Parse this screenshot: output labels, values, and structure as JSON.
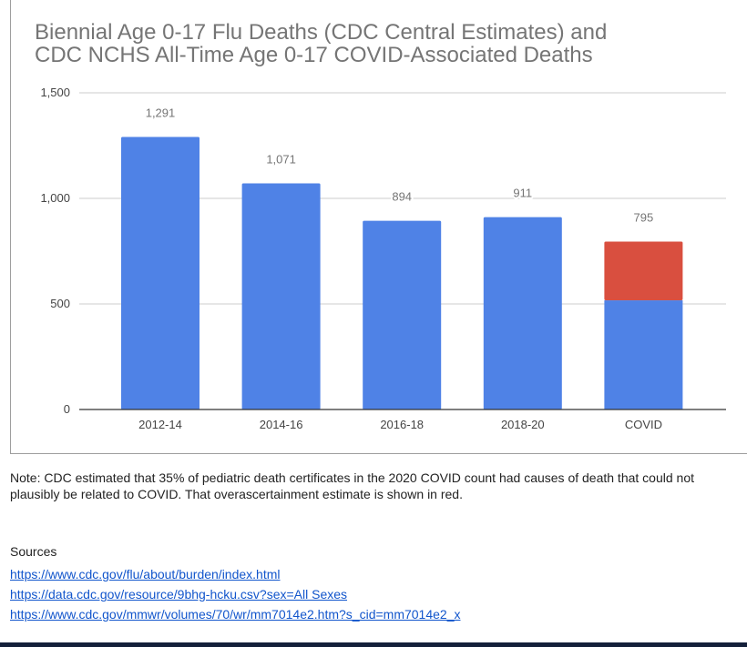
{
  "chart_data": {
    "type": "bar",
    "stacked": true,
    "title": "Biennial Age 0-17 Flu Deaths (CDC Central Estimates) and CDC NCHS All-Time Age 0-17 COVID-Associated Deaths",
    "title_lines": [
      "Biennial Age 0-17 Flu Deaths (CDC Central Estimates) and",
      "CDC NCHS All-Time Age 0-17 COVID-Associated Deaths"
    ],
    "categories": [
      "2012-14",
      "2014-16",
      "2016-18",
      "2018-20",
      "COVID"
    ],
    "series": [
      {
        "name": "Deaths",
        "color": "#4f82e6",
        "values": [
          1291,
          1071,
          894,
          911,
          517
        ]
      },
      {
        "name": "Overascertainment estimate (35%)",
        "color": "#d94f3f",
        "values": [
          0,
          0,
          0,
          0,
          278
        ]
      }
    ],
    "data_labels": [
      "1,291",
      "1,071",
      "894",
      "911",
      "795"
    ],
    "totals": [
      1291,
      1071,
      894,
      911,
      795
    ],
    "xlabel": "",
    "ylabel": "",
    "ylim": [
      0,
      1500
    ],
    "yticks": [
      0,
      500,
      1000,
      1500
    ],
    "ytick_labels": [
      "0",
      "500",
      "1,000",
      "1,500"
    ],
    "grid": true,
    "legend": "none"
  },
  "note": "Note: CDC estimated that 35% of pediatric death certificates in the 2020 COVID count had causes of death that could not plausibly be related to COVID.  That overascertainment estimate is shown in red.",
  "sources": {
    "heading": "Sources",
    "links": [
      "https://www.cdc.gov/flu/about/burden/index.html",
      "https://data.cdc.gov/resource/9bhg-hcku.csv?sex=All Sexes",
      "https://www.cdc.gov/mmwr/volumes/70/wr/mm7014e2.htm?s_cid=mm7014e2_x"
    ]
  }
}
